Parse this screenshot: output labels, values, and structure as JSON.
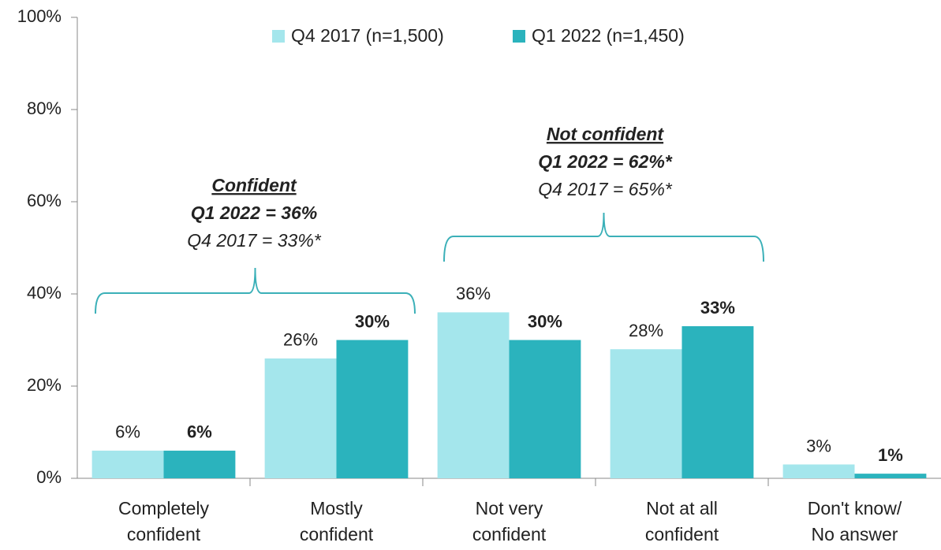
{
  "chart_data": {
    "type": "bar",
    "categories": [
      [
        "Completely",
        "confident"
      ],
      [
        "Mostly",
        "confident"
      ],
      [
        "Not very",
        "confident"
      ],
      [
        "Not at all",
        "confident"
      ],
      [
        "Don't know/",
        "No answer"
      ]
    ],
    "series": [
      {
        "name": "Q4 2017 (n=1,500)",
        "color": "#a4e6ec",
        "values": [
          6,
          26,
          36,
          28,
          3
        ],
        "value_labels": [
          "6%",
          "26%",
          "36%",
          "28%",
          "3%"
        ]
      },
      {
        "name": "Q1 2022 (n=1,450)",
        "color": "#2bb3bd",
        "values": [
          6,
          30,
          30,
          33,
          1
        ],
        "value_labels": [
          "6%",
          "30%",
          "30%",
          "33%",
          "1%"
        ]
      }
    ],
    "ylim": [
      0,
      100
    ],
    "yticks": [
      {
        "value": 0,
        "label": "0%"
      },
      {
        "value": 20,
        "label": "20%"
      },
      {
        "value": 40,
        "label": "40%"
      },
      {
        "value": 60,
        "label": "60%"
      },
      {
        "value": 80,
        "label": "80%"
      },
      {
        "value": 100,
        "label": "100%"
      }
    ],
    "grid": false,
    "legend": "top",
    "annotations": [
      {
        "lines": [
          "Confident",
          "Q1 2022 = 36%",
          "Q4 2017 = 33%*"
        ]
      },
      {
        "lines": [
          "Not confident",
          "Q1 2022 = 62%*",
          "Q4 2017 = 65%*"
        ]
      }
    ]
  }
}
